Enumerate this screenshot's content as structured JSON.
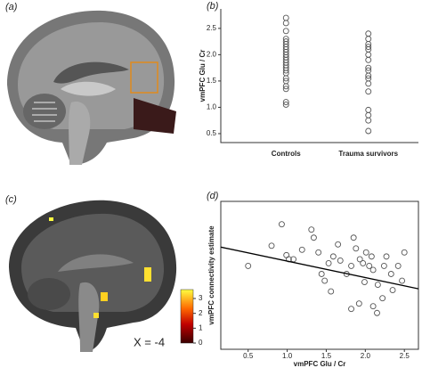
{
  "panels": {
    "a": "(a)",
    "c": "(c)"
  },
  "slice_label": "X = -4",
  "colorbar": {
    "lim": [
      0,
      3.6
    ],
    "ticks": [
      0,
      1,
      2,
      3
    ]
  },
  "chart_data": [
    {
      "type": "strip",
      "panel_label": "(b)",
      "y_label": "vmPFC Glu / Cr",
      "categories": [
        "Controls",
        "Trauma survivors"
      ],
      "values": [
        [
          2.7,
          2.6,
          2.45,
          2.3,
          2.25,
          2.2,
          2.15,
          2.1,
          2.05,
          2.0,
          1.95,
          1.9,
          1.85,
          1.8,
          1.75,
          1.7,
          1.65,
          1.55,
          1.5,
          1.4,
          1.35,
          1.1,
          1.05
        ],
        [
          2.4,
          2.3,
          2.2,
          2.15,
          2.1,
          2.0,
          1.9,
          1.75,
          1.7,
          1.6,
          1.55,
          1.45,
          1.3,
          0.95,
          0.85,
          0.75,
          0.55
        ]
      ],
      "color": "#555555",
      "ylim": [
        0.33,
        2.87
      ],
      "yticks": [
        {
          "value": 0.5,
          "label": "0.5"
        },
        {
          "value": 1,
          "label": "1.0"
        },
        {
          "value": 1.5,
          "label": "1.5"
        },
        {
          "value": 2,
          "label": "2.0"
        },
        {
          "value": 2.5,
          "label": "2.5"
        }
      ]
    },
    {
      "type": "scatter",
      "panel_label": "(d)",
      "x_label": "vmPFC Glu / Cr",
      "y_label": "vmPFC connectivity estimate",
      "x": [
        0.5,
        0.8,
        0.93,
        0.99,
        1.02,
        1.08,
        1.19,
        1.31,
        1.34,
        1.4,
        1.44,
        1.48,
        1.53,
        1.56,
        1.59,
        1.65,
        1.68,
        1.76,
        1.82,
        1.85,
        1.88,
        1.93,
        1.97,
        1.99,
        2.01,
        2.05,
        2.08,
        2.1,
        2.16,
        2.22,
        2.24,
        2.27,
        2.33,
        2.35,
        2.42,
        2.47,
        2.5,
        1.92,
        1.82,
        2.15,
        2.1
      ],
      "y": [
        0.12,
        0.27,
        0.43,
        0.2,
        0.17,
        0.17,
        0.24,
        0.39,
        0.33,
        0.22,
        0.06,
        0.01,
        0.14,
        -0.07,
        0.19,
        0.28,
        0.16,
        0.06,
        0.12,
        0.33,
        0.25,
        0.17,
        0.14,
        0.0,
        0.22,
        0.12,
        0.19,
        0.09,
        -0.02,
        -0.12,
        0.12,
        0.19,
        0.06,
        -0.06,
        0.12,
        0.01,
        0.22,
        -0.16,
        -0.2,
        -0.23,
        -0.18
      ],
      "color": "#555555",
      "fit": {
        "x": [
          0.15,
          2.68
        ],
        "y": [
          0.26,
          -0.05
        ],
        "color": "#000000"
      },
      "xlim": [
        0.15,
        2.68
      ],
      "ylim": [
        -0.5,
        0.6
      ],
      "xticks": [
        {
          "value": 0.5,
          "label": "0.5"
        },
        {
          "value": 1,
          "label": "1.0"
        },
        {
          "value": 1.5,
          "label": "1.5"
        },
        {
          "value": 2,
          "label": "2.0"
        },
        {
          "value": 2.5,
          "label": "2.5"
        }
      ]
    }
  ]
}
